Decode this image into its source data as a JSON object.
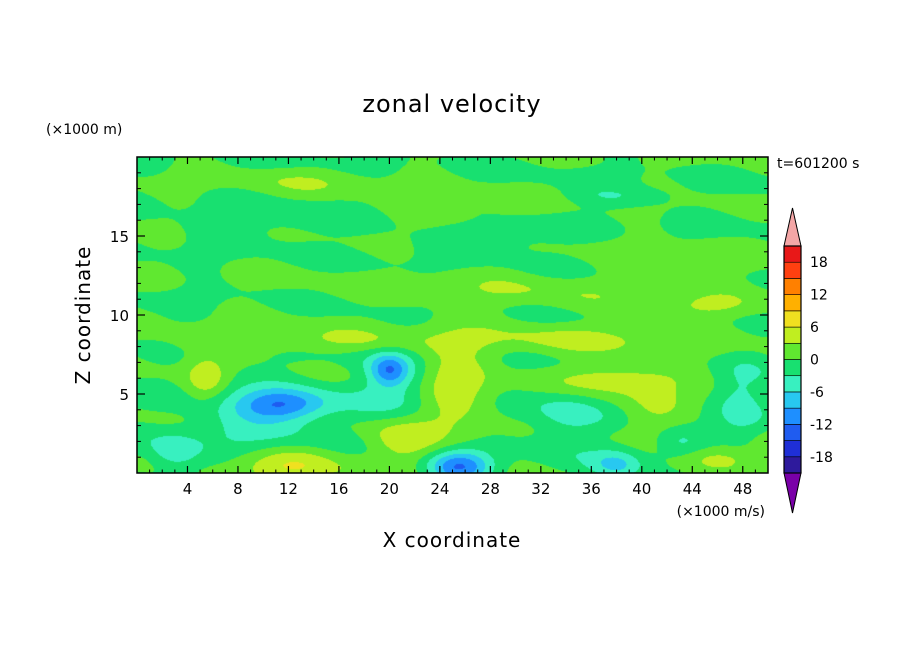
{
  "chart_data": {
    "type": "heatmap",
    "title": "zonal velocity",
    "xlabel": "X coordinate",
    "ylabel": "Z coordinate",
    "x_unit": "(×1000 m/s)",
    "y_unit": "(×1000 m)",
    "time_label": "t=601200 s",
    "xlim": [
      0,
      50
    ],
    "ylim": [
      0,
      20
    ],
    "x_ticks": [
      4,
      8,
      12,
      16,
      20,
      24,
      28,
      32,
      36,
      40,
      44,
      48
    ],
    "y_ticks": [
      5,
      10,
      15
    ],
    "colorbar": {
      "levels": [
        -21,
        -18,
        -15,
        -12,
        -9,
        -6,
        -3,
        0,
        3,
        6,
        9,
        12,
        15,
        18,
        21
      ],
      "tick_values": [
        18,
        12,
        6,
        0,
        -6,
        -12,
        -18
      ],
      "colors": [
        "#7a00a8",
        "#2e1a9c",
        "#1f2fd6",
        "#1f5cf0",
        "#1e8fff",
        "#28c8f0",
        "#38f0c0",
        "#18e070",
        "#60e830",
        "#c0ee20",
        "#f0e020",
        "#ffb000",
        "#ff8000",
        "#ff4010",
        "#e81818",
        "#f4a6a6"
      ],
      "extend": "both"
    },
    "features": [
      {
        "x": 5.5,
        "z": 6.0,
        "sx": 1.6,
        "sy": 1.4,
        "v": 5
      },
      {
        "x": 12,
        "z": 0.5,
        "sx": 4.5,
        "sy": 1.3,
        "v": 6
      },
      {
        "x": 11.5,
        "z": 4.3,
        "sx": 3.5,
        "sy": 1.0,
        "v": -9
      },
      {
        "x": 10,
        "z": 3.2,
        "sx": 6,
        "sy": 2.5,
        "v": -4
      },
      {
        "x": 3,
        "z": 1.2,
        "sx": 2,
        "sy": 1.2,
        "v": -5
      },
      {
        "x": 20,
        "z": 6.5,
        "sx": 1.5,
        "sy": 1.0,
        "v": -9
      },
      {
        "x": 21,
        "z": 5.5,
        "sx": 4,
        "sy": 2.2,
        "v": -4
      },
      {
        "x": 25,
        "z": 5.5,
        "sx": 3,
        "sy": 2.8,
        "v": 6
      },
      {
        "x": 21,
        "z": 2.0,
        "sx": 3,
        "sy": 1.5,
        "v": 5
      },
      {
        "x": 25.5,
        "z": 0.4,
        "sx": 2.5,
        "sy": 1.0,
        "v": -12
      },
      {
        "x": 34,
        "z": 3.5,
        "sx": 3,
        "sy": 2,
        "v": -4
      },
      {
        "x": 38,
        "z": 6.0,
        "sx": 5,
        "sy": 1.0,
        "v": 5
      },
      {
        "x": 41,
        "z": 4.0,
        "sx": 3,
        "sy": 1.5,
        "v": 3
      },
      {
        "x": 48,
        "z": 4.5,
        "sx": 2,
        "sy": 2.5,
        "v": -4
      },
      {
        "x": 38,
        "z": 0.5,
        "sx": 2,
        "sy": 1.0,
        "v": -6
      },
      {
        "x": 46,
        "z": 0.8,
        "sx": 3,
        "sy": 0.8,
        "v": 5
      },
      {
        "x": 43,
        "z": 2.0,
        "sx": 2,
        "sy": 1.0,
        "v": -4
      },
      {
        "x": 36,
        "z": 8.5,
        "sx": 10,
        "sy": 1.0,
        "v": 3
      },
      {
        "x": 14,
        "z": 8.3,
        "sx": 12,
        "sy": 0.8,
        "v": 3
      },
      {
        "x": 30,
        "z": 11.5,
        "sx": 12,
        "sy": 1.2,
        "v": 2
      },
      {
        "x": 28,
        "z": 14.8,
        "sx": 5,
        "sy": 0.9,
        "v": -3
      },
      {
        "x": 12,
        "z": 15.8,
        "sx": 8,
        "sy": 1.0,
        "v": -2
      },
      {
        "x": 38,
        "z": 17.5,
        "sx": 4,
        "sy": 0.6,
        "v": -3
      },
      {
        "x": 25,
        "z": 16.5,
        "sx": 6,
        "sy": 1.0,
        "v": 2
      },
      {
        "x": 44,
        "z": 13.0,
        "sx": 5,
        "sy": 1.0,
        "v": 2
      },
      {
        "x": 14,
        "z": 18.5,
        "sx": 6,
        "sy": 0.8,
        "v": 2
      },
      {
        "x": 45,
        "z": 10.5,
        "sx": 4,
        "sy": 0.8,
        "v": 3
      }
    ]
  }
}
